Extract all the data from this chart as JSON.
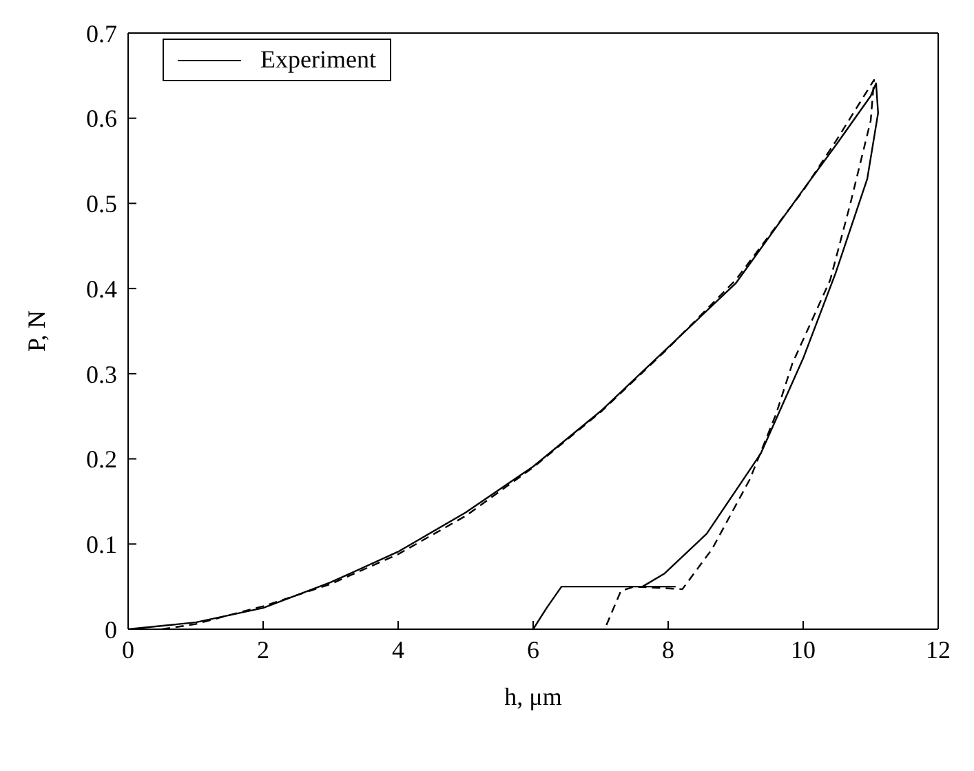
{
  "chart_data": {
    "type": "line",
    "xlabel": "h, μm",
    "ylabel": "P, N",
    "xlim": [
      0,
      12
    ],
    "xticks": [
      0,
      2,
      4,
      6,
      8,
      10,
      12
    ],
    "ylim": [
      0,
      0.7
    ],
    "yticks": [
      0,
      0.1,
      0.2,
      0.3,
      0.4,
      0.5,
      0.6,
      0.7
    ],
    "legend": "top left",
    "marker": "none",
    "series": [
      {
        "name": "Experiment",
        "color": "#000000",
        "line_style": "solid",
        "x": [
          0,
          1,
          2,
          3,
          4,
          5,
          6,
          7,
          8,
          9,
          10,
          10.5,
          11,
          11.08,
          11.11,
          10.95,
          10.48,
          10,
          9.37,
          8.57,
          7.94,
          7.62,
          8.1,
          7.5,
          6.42,
          6.2,
          6
        ],
        "values": [
          0,
          0.008,
          0.025,
          0.055,
          0.091,
          0.137,
          0.191,
          0.256,
          0.331,
          0.406,
          0.516,
          0.57,
          0.626,
          0.641,
          0.606,
          0.529,
          0.418,
          0.318,
          0.206,
          0.112,
          0.065,
          0.05,
          0.05,
          0.05,
          0.05,
          0.025,
          0
        ]
      },
      {
        "color": "#000000",
        "line_style": "dashed",
        "x": [
          0.5,
          1,
          2,
          3,
          4,
          5,
          6,
          7,
          8,
          9,
          10,
          10.5,
          11.05,
          11,
          10.7,
          10.4,
          9.84,
          9.6,
          9.21,
          8.65,
          8.21,
          7.5,
          7.3,
          7.06
        ],
        "values": [
          0,
          0.006,
          0.027,
          0.053,
          0.088,
          0.133,
          0.19,
          0.255,
          0.33,
          0.41,
          0.515,
          0.575,
          0.645,
          0.597,
          0.5,
          0.41,
          0.312,
          0.253,
          0.176,
          0.094,
          0.047,
          0.05,
          0.045,
          0
        ]
      }
    ]
  }
}
